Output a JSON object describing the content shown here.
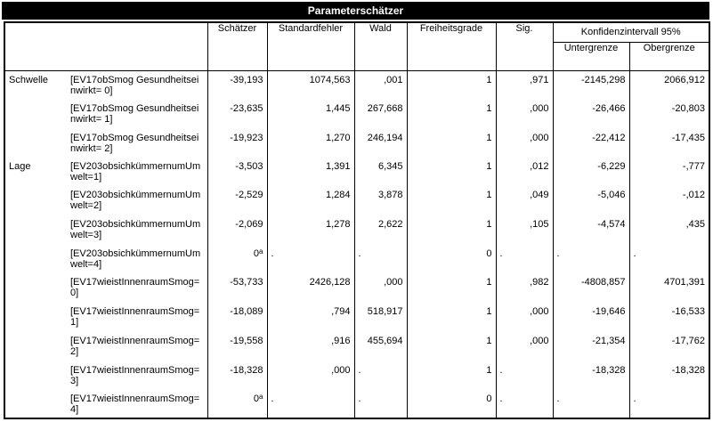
{
  "title": "Parameterschätzer",
  "headers": {
    "estimate": "Schätzer",
    "std_error": "Standardfehler",
    "wald": "Wald",
    "df": "Freiheitsgrade",
    "sig": "Sig.",
    "ci_group": "Konfidenzintervall 95%",
    "ci_lower": "Untergrenze",
    "ci_upper": "Obergrenze"
  },
  "rows": [
    {
      "group": "Schwelle",
      "param": "[EV17obSmog Gesundheitseinwirkt= 0]",
      "estimate": "-39,193",
      "sup": "",
      "std_error": "1074,563",
      "wald": ",001",
      "df": "1",
      "sig": ",971",
      "lower": "-2145,298",
      "upper": "2066,912"
    },
    {
      "group": "",
      "param": "[EV17obSmog Gesundheitseinwirkt= 1]",
      "estimate": "-23,635",
      "sup": "",
      "std_error": "1,445",
      "wald": "267,668",
      "df": "1",
      "sig": ",000",
      "lower": "-26,466",
      "upper": "-20,803"
    },
    {
      "group": "",
      "param": "[EV17obSmog Gesundheitseinwirkt= 2]",
      "estimate": "-19,923",
      "sup": "",
      "std_error": "1,270",
      "wald": "246,194",
      "df": "1",
      "sig": ",000",
      "lower": "-22,412",
      "upper": "-17,435"
    },
    {
      "group": "Lage",
      "param": "[EV203obsichkümmernumUmwelt=1]",
      "estimate": "-3,503",
      "sup": "",
      "std_error": "1,391",
      "wald": "6,345",
      "df": "1",
      "sig": ",012",
      "lower": "-6,229",
      "upper": "-,777"
    },
    {
      "group": "",
      "param": "[EV203obsichkümmernumUmwelt=2]",
      "estimate": "-2,529",
      "sup": "",
      "std_error": "1,284",
      "wald": "3,878",
      "df": "1",
      "sig": ",049",
      "lower": "-5,046",
      "upper": "-,012"
    },
    {
      "group": "",
      "param": "[EV203obsichkümmernumUmwelt=3]",
      "estimate": "-2,069",
      "sup": "",
      "std_error": "1,278",
      "wald": "2,622",
      "df": "1",
      "sig": ",105",
      "lower": "-4,574",
      "upper": ",435"
    },
    {
      "group": "",
      "param": "[EV203obsichkümmernumUmwelt=4]",
      "estimate": "0",
      "sup": "a",
      "std_error": ".",
      "wald": ".",
      "df": "0",
      "sig": ".",
      "lower": ".",
      "upper": "."
    },
    {
      "group": "",
      "param": "[EV17wieistInnenraumSmog=0]",
      "estimate": "-53,733",
      "sup": "",
      "std_error": "2426,128",
      "wald": ",000",
      "df": "1",
      "sig": ",982",
      "lower": "-4808,857",
      "upper": "4701,391"
    },
    {
      "group": "",
      "param": "[EV17wieistInnenraumSmog=1]",
      "estimate": "-18,089",
      "sup": "",
      "std_error": ",794",
      "wald": "518,917",
      "df": "1",
      "sig": ",000",
      "lower": "-19,646",
      "upper": "-16,533"
    },
    {
      "group": "",
      "param": "[EV17wieistInnenraumSmog=2]",
      "estimate": "-19,558",
      "sup": "",
      "std_error": ",916",
      "wald": "455,694",
      "df": "1",
      "sig": ",000",
      "lower": "-21,354",
      "upper": "-17,762"
    },
    {
      "group": "",
      "param": "[EV17wieistInnenraumSmog=3]",
      "estimate": "-18,328",
      "sup": "",
      "std_error": ",000",
      "wald": ".",
      "df": "1",
      "sig": ".",
      "lower": "-18,328",
      "upper": "-18,328"
    },
    {
      "group": "",
      "param": "[EV17wieistInnenraumSmog=4]",
      "estimate": "0",
      "sup": "a",
      "std_error": ".",
      "wald": ".",
      "df": "0",
      "sig": ".",
      "lower": ".",
      "upper": "."
    }
  ]
}
